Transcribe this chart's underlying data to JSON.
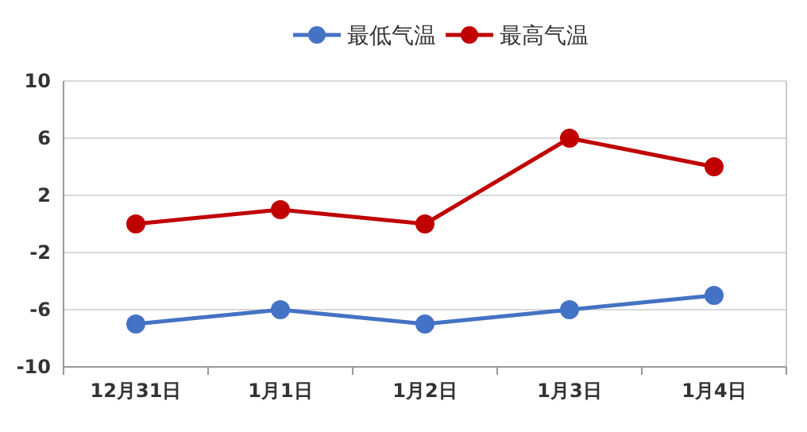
{
  "chart_data": {
    "type": "line",
    "categories": [
      "12月31日",
      "1月1日",
      "1月2日",
      "1月3日",
      "1月4日"
    ],
    "series": [
      {
        "name": "最低气温",
        "color": "#4472c4",
        "values": [
          -7,
          -6,
          -7,
          -6,
          -5
        ]
      },
      {
        "name": "最高气温",
        "color": "#c00000",
        "values": [
          0,
          1,
          0,
          6,
          4
        ]
      }
    ],
    "ylim": [
      -10,
      10
    ],
    "yticks": [
      -10,
      -6,
      -2,
      2,
      6,
      10
    ],
    "grid": "y",
    "legend": "top",
    "marker": "circle",
    "line_style": "solid"
  }
}
